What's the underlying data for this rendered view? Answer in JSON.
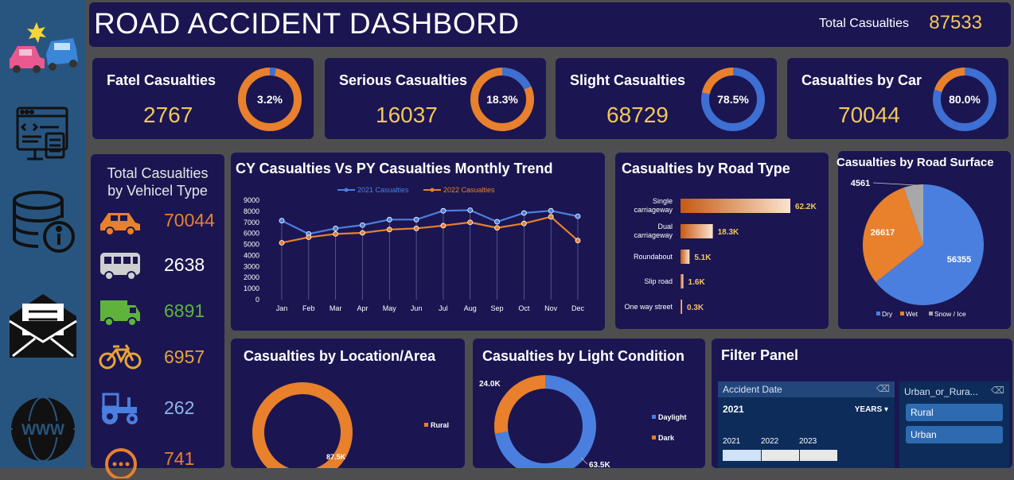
{
  "dashboard": {
    "title": "ROAD ACCIDENT DASHBORD",
    "total_label": "Total Casualties",
    "total_value": "87533"
  },
  "sidebar": {
    "items": [
      {
        "icon": "car-crash-icon"
      },
      {
        "icon": "code-window-icon"
      },
      {
        "icon": "database-info-icon"
      },
      {
        "icon": "mail-envelope-icon"
      },
      {
        "icon": "www-globe-icon"
      }
    ]
  },
  "kpis": [
    {
      "label": "Fatel Casualties",
      "value": "2767",
      "percent_label": "3.2%",
      "percent": 3.2,
      "ring": "#e8802c",
      "fill": "#3e6fd2"
    },
    {
      "label": "Serious Casualties",
      "value": "16037",
      "percent_label": "18.3%",
      "percent": 18.3,
      "ring": "#e8802c",
      "fill": "#3e6fd2"
    },
    {
      "label": "Slight Casualties",
      "value": "68729",
      "percent_label": "78.5%",
      "percent": 78.5,
      "ring": "#e8802c",
      "fill": "#3e6fd2"
    },
    {
      "label": "Casualties by Car",
      "value": "70044",
      "percent_label": "80.0%",
      "percent": 80.0,
      "ring": "#e8802c",
      "fill": "#3e6fd2"
    }
  ],
  "vehicle_panel": {
    "title_line1": "Total Casualties",
    "title_line2": "by Vehicel Type",
    "items": [
      {
        "icon": "car-icon",
        "value": "70044",
        "color": "#e8802c"
      },
      {
        "icon": "bus-icon",
        "value": "2638",
        "color": "#ffffff"
      },
      {
        "icon": "van-icon",
        "value": "6891",
        "color": "#5fb33d"
      },
      {
        "icon": "bicycle-icon",
        "value": "6957",
        "color": "#e8a33a"
      },
      {
        "icon": "tractor-icon",
        "value": "262",
        "color": "#8fb5ec"
      },
      {
        "icon": "other-vehicle-icon",
        "value": "741",
        "color": "#e8802c"
      }
    ]
  },
  "trend": {
    "title": "CY Casualties Vs PY Casualties Monthly Trend"
  },
  "road_type": {
    "title": "Casualties by Road Type"
  },
  "road_surface": {
    "title": "Casualties by Road Surface"
  },
  "location": {
    "title": "Casualties by Location/Area"
  },
  "light": {
    "title": "Casualties by Light Condition"
  },
  "filter": {
    "title": "Filter Panel",
    "date_header": "Accident Date",
    "date_selected": "2021",
    "years_label": "YEARS ▾",
    "years": [
      "2021",
      "2022",
      "2023"
    ],
    "area_header": "Urban_or_Rura...",
    "areas": [
      "Rural",
      "Urban"
    ]
  },
  "chart_data": [
    {
      "type": "line",
      "title": "CY Casualties Vs PY Casualties Monthly Trend",
      "categories": [
        "Jan",
        "Feb",
        "Mar",
        "Apr",
        "May",
        "Jun",
        "Jul",
        "Aug",
        "Sep",
        "Oct",
        "Nov",
        "Dec"
      ],
      "yticks": [
        0,
        1000,
        2000,
        3000,
        4000,
        5000,
        6000,
        7000,
        8000,
        9000
      ],
      "ylim": [
        0,
        9000
      ],
      "series": [
        {
          "name": "2021 Casualties",
          "color": "#4a7fe0",
          "values": [
            7150,
            5950,
            6450,
            6750,
            7250,
            7250,
            8050,
            8100,
            7050,
            7850,
            8050,
            7550
          ]
        },
        {
          "name": "2022 Casualties",
          "color": "#e8802c",
          "values": [
            5150,
            5650,
            5950,
            6050,
            6350,
            6450,
            6700,
            7000,
            6500,
            6900,
            7500,
            5350
          ]
        }
      ],
      "legend": "top"
    },
    {
      "type": "bar",
      "orientation": "horizontal",
      "title": "Casualties by Road Type",
      "categories": [
        "Single carriageway",
        "Dual carriageway",
        "Roundabout",
        "Slip road",
        "One way street"
      ],
      "values": [
        62.2,
        18.3,
        5.1,
        1.6,
        0.3
      ],
      "labels": [
        "62.2K",
        "18.3K",
        "5.1K",
        "1.6K",
        "0.3K"
      ]
    },
    {
      "type": "pie",
      "title": "Casualties by Road Surface",
      "categories": [
        "Dry",
        "Wet",
        "Snow / Ice"
      ],
      "values": [
        56355,
        26617,
        4561
      ],
      "labels": [
        "56355",
        "26617",
        "4561"
      ],
      "colors": [
        "#4a7fe0",
        "#e8802c",
        "#a8a8a8"
      ],
      "legend": "bottom"
    },
    {
      "type": "pie",
      "title": "Casualties by Location/Area",
      "categories": [
        "Rural"
      ],
      "values": [
        87.5
      ],
      "labels": [
        "87.5K"
      ],
      "colors": [
        "#e8802c"
      ],
      "legend": "right"
    },
    {
      "type": "pie",
      "title": "Casualties by Light Condition",
      "categories": [
        "Daylight",
        "Dark"
      ],
      "values": [
        63.5,
        24.0
      ],
      "labels": [
        "63.5K",
        "24.0K"
      ],
      "colors": [
        "#4a7fe0",
        "#e8802c"
      ],
      "legend": "right"
    }
  ]
}
